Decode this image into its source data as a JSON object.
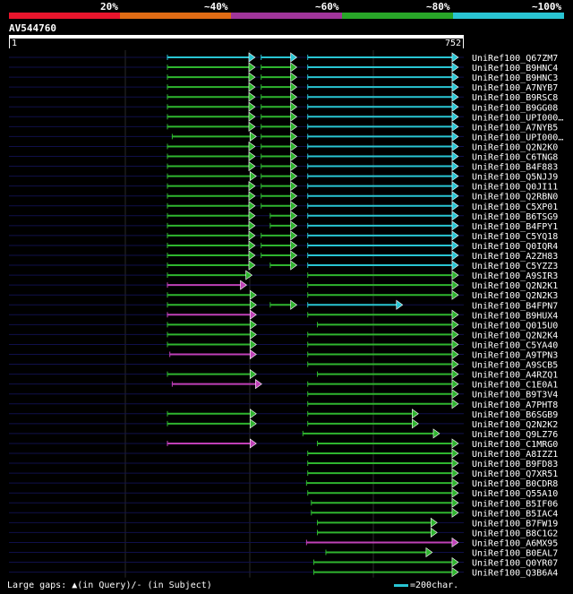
{
  "colors": {
    "background": "#000000",
    "segment_red": "#e8152c",
    "segment_orange": "#e06b14",
    "segment_purple": "#a0359a",
    "segment_green": "#28a628",
    "segment_cyan": "#29c5d3",
    "hit_cyan": "#29c5d3",
    "hit_green": "#2fb52f",
    "hit_magenta": "#c040b8",
    "query_line": "#ffffff",
    "track_line": "#10104a",
    "gridline": "#2a2a2a"
  },
  "identity_legend": {
    "labels": [
      "20%",
      "~40%",
      "~60%",
      "~80%",
      "~100%"
    ],
    "segment_colors": [
      "#e8152c",
      "#e06b14",
      "#a0359a",
      "#28a628",
      "#29c5d3"
    ]
  },
  "query": {
    "name": "AV544760",
    "start_label": "1",
    "end_label": "752",
    "length": 752
  },
  "hits": [
    {
      "name": "UniRef100_Q67ZM7",
      "segments": [
        [
          262,
          407,
          "c"
        ],
        [
          417,
          476,
          "c"
        ],
        [
          494,
          743,
          "c"
        ]
      ]
    },
    {
      "name": "UniRef100_B9HNC4",
      "segments": [
        [
          262,
          407,
          "g"
        ],
        [
          417,
          476,
          "g"
        ],
        [
          494,
          743,
          "c"
        ]
      ]
    },
    {
      "name": "UniRef100_B9HNC3",
      "segments": [
        [
          262,
          407,
          "g"
        ],
        [
          417,
          476,
          "g"
        ],
        [
          494,
          743,
          "c"
        ]
      ]
    },
    {
      "name": "UniRef100_A7NYB7",
      "segments": [
        [
          262,
          407,
          "g"
        ],
        [
          417,
          476,
          "g"
        ],
        [
          494,
          743,
          "c"
        ]
      ]
    },
    {
      "name": "UniRef100_B9RSC8",
      "segments": [
        [
          262,
          407,
          "g"
        ],
        [
          417,
          476,
          "g"
        ],
        [
          494,
          743,
          "c"
        ]
      ]
    },
    {
      "name": "UniRef100_B9GG08",
      "segments": [
        [
          262,
          407,
          "g"
        ],
        [
          417,
          476,
          "g"
        ],
        [
          494,
          743,
          "c"
        ]
      ]
    },
    {
      "name": "UniRef100_UPI000…",
      "segments": [
        [
          262,
          407,
          "g"
        ],
        [
          417,
          476,
          "g"
        ],
        [
          494,
          743,
          "c"
        ]
      ]
    },
    {
      "name": "UniRef100_A7NYB5",
      "segments": [
        [
          262,
          407,
          "g"
        ],
        [
          417,
          476,
          "g"
        ],
        [
          494,
          743,
          "c"
        ]
      ]
    },
    {
      "name": "UniRef100_UPI000…",
      "segments": [
        [
          270,
          409,
          "g"
        ],
        [
          417,
          476,
          "g"
        ],
        [
          494,
          743,
          "c"
        ]
      ]
    },
    {
      "name": "UniRef100_Q2N2K0",
      "segments": [
        [
          262,
          407,
          "g"
        ],
        [
          417,
          476,
          "g"
        ],
        [
          494,
          743,
          "c"
        ]
      ]
    },
    {
      "name": "UniRef100_C6TNG8",
      "segments": [
        [
          262,
          407,
          "g"
        ],
        [
          417,
          476,
          "g"
        ],
        [
          494,
          743,
          "c"
        ]
      ]
    },
    {
      "name": "UniRef100_B4F883",
      "segments": [
        [
          262,
          407,
          "g"
        ],
        [
          417,
          476,
          "g"
        ],
        [
          494,
          743,
          "c"
        ]
      ]
    },
    {
      "name": "UniRef100_Q5NJJ9",
      "segments": [
        [
          262,
          409,
          "g"
        ],
        [
          417,
          476,
          "g"
        ],
        [
          494,
          743,
          "c"
        ]
      ]
    },
    {
      "name": "UniRef100_Q0JI11",
      "segments": [
        [
          262,
          407,
          "g"
        ],
        [
          417,
          476,
          "g"
        ],
        [
          494,
          743,
          "c"
        ]
      ]
    },
    {
      "name": "UniRef100_Q2RBN0",
      "segments": [
        [
          262,
          407,
          "g"
        ],
        [
          417,
          476,
          "g"
        ],
        [
          494,
          743,
          "c"
        ]
      ]
    },
    {
      "name": "UniRef100_C5XP01",
      "segments": [
        [
          262,
          407,
          "g"
        ],
        [
          417,
          476,
          "g"
        ],
        [
          494,
          743,
          "c"
        ]
      ]
    },
    {
      "name": "UniRef100_B6TSG9",
      "segments": [
        [
          262,
          407,
          "g"
        ],
        [
          432,
          476,
          "g"
        ],
        [
          494,
          743,
          "c"
        ]
      ]
    },
    {
      "name": "UniRef100_B4FPY1",
      "segments": [
        [
          262,
          407,
          "g"
        ],
        [
          432,
          476,
          "g"
        ],
        [
          494,
          743,
          "c"
        ]
      ]
    },
    {
      "name": "UniRef100_C5YQ18",
      "segments": [
        [
          262,
          407,
          "g"
        ],
        [
          417,
          476,
          "g"
        ],
        [
          494,
          743,
          "c"
        ]
      ]
    },
    {
      "name": "UniRef100_Q0IQR4",
      "segments": [
        [
          262,
          407,
          "g"
        ],
        [
          417,
          476,
          "g"
        ],
        [
          494,
          743,
          "c"
        ]
      ]
    },
    {
      "name": "UniRef100_A2ZH83",
      "segments": [
        [
          262,
          407,
          "g"
        ],
        [
          417,
          476,
          "g"
        ],
        [
          494,
          743,
          "c"
        ]
      ]
    },
    {
      "name": "UniRef100_C5YZZ3",
      "segments": [
        [
          262,
          407,
          "g"
        ],
        [
          432,
          476,
          "g"
        ],
        [
          494,
          743,
          "c"
        ]
      ]
    },
    {
      "name": "UniRef100_A9SIR3",
      "segments": [
        [
          262,
          402,
          "g"
        ],
        [
          494,
          743,
          "g"
        ]
      ]
    },
    {
      "name": "UniRef100_Q2N2K1",
      "segments": [
        [
          262,
          393,
          "m"
        ],
        [
          494,
          743,
          "g"
        ]
      ]
    },
    {
      "name": "UniRef100_Q2N2K3",
      "segments": [
        [
          262,
          409,
          "g"
        ],
        [
          494,
          743,
          "g"
        ]
      ]
    },
    {
      "name": "UniRef100_B4FPN7",
      "segments": [
        [
          262,
          409,
          "g"
        ],
        [
          432,
          476,
          "g"
        ],
        [
          494,
          651,
          "c"
        ]
      ]
    },
    {
      "name": "UniRef100_B9HUX4",
      "segments": [
        [
          262,
          409,
          "m"
        ],
        [
          494,
          743,
          "g"
        ]
      ]
    },
    {
      "name": "UniRef100_Q015U0",
      "segments": [
        [
          262,
          409,
          "g"
        ],
        [
          510,
          743,
          "g"
        ]
      ]
    },
    {
      "name": "UniRef100_Q2N2K4",
      "segments": [
        [
          262,
          409,
          "g"
        ],
        [
          494,
          743,
          "g"
        ]
      ]
    },
    {
      "name": "UniRef100_C5YA40",
      "segments": [
        [
          262,
          409,
          "g"
        ],
        [
          494,
          743,
          "g"
        ]
      ]
    },
    {
      "name": "UniRef100_A9TPN3",
      "segments": [
        [
          266,
          409,
          "m"
        ],
        [
          494,
          743,
          "g"
        ]
      ]
    },
    {
      "name": "UniRef100_A9SCB5",
      "segments": [
        [
          494,
          743,
          "g"
        ]
      ]
    },
    {
      "name": "UniRef100_A4RZQ1",
      "segments": [
        [
          262,
          409,
          "g"
        ],
        [
          510,
          743,
          "g"
        ]
      ]
    },
    {
      "name": "UniRef100_C1E0A1",
      "segments": [
        [
          270,
          418,
          "m"
        ],
        [
          494,
          743,
          "g"
        ]
      ]
    },
    {
      "name": "UniRef100_B9T3V4",
      "segments": [
        [
          494,
          743,
          "g"
        ]
      ]
    },
    {
      "name": "UniRef100_A7PHT8",
      "segments": [
        [
          494,
          743,
          "g"
        ]
      ]
    },
    {
      "name": "UniRef100_B6SGB9",
      "segments": [
        [
          262,
          409,
          "g"
        ],
        [
          494,
          677,
          "g"
        ]
      ]
    },
    {
      "name": "UniRef100_Q2N2K2",
      "segments": [
        [
          262,
          409,
          "g"
        ],
        [
          494,
          677,
          "g"
        ]
      ]
    },
    {
      "name": "UniRef100_Q9LZ76",
      "segments": [
        [
          486,
          712,
          "g"
        ]
      ]
    },
    {
      "name": "UniRef100_C1MRG0",
      "segments": [
        [
          262,
          409,
          "m"
        ],
        [
          510,
          743,
          "g"
        ]
      ]
    },
    {
      "name": "UniRef100_A8IZZ1",
      "segments": [
        [
          494,
          743,
          "g"
        ]
      ]
    },
    {
      "name": "UniRef100_B9FD83",
      "segments": [
        [
          494,
          743,
          "g"
        ]
      ]
    },
    {
      "name": "UniRef100_Q7XR51",
      "segments": [
        [
          494,
          743,
          "g"
        ]
      ]
    },
    {
      "name": "UniRef100_B0CDR8",
      "segments": [
        [
          492,
          743,
          "g"
        ]
      ]
    },
    {
      "name": "UniRef100_Q55A10",
      "segments": [
        [
          494,
          743,
          "g"
        ]
      ]
    },
    {
      "name": "UniRef100_B5IF06",
      "segments": [
        [
          500,
          743,
          "g"
        ]
      ]
    },
    {
      "name": "UniRef100_B5IAC4",
      "segments": [
        [
          500,
          743,
          "g"
        ]
      ]
    },
    {
      "name": "UniRef100_B7FW19",
      "segments": [
        [
          510,
          708,
          "g"
        ]
      ]
    },
    {
      "name": "UniRef100_B8C1G2",
      "segments": [
        [
          510,
          708,
          "g"
        ]
      ]
    },
    {
      "name": "UniRef100_A6MX95",
      "segments": [
        [
          492,
          743,
          "m"
        ]
      ]
    },
    {
      "name": "UniRef100_B0EAL7",
      "segments": [
        [
          524,
          700,
          "g"
        ]
      ]
    },
    {
      "name": "UniRef100_Q0YR07",
      "segments": [
        [
          504,
          743,
          "g"
        ]
      ]
    },
    {
      "name": "UniRef100_Q3B6A4",
      "segments": [
        [
          504,
          743,
          "g"
        ]
      ]
    }
  ],
  "footer": {
    "large_gaps_text": "Large gaps: ▲(in Query)/- (in Subject)",
    "scale_text": "=200char."
  }
}
